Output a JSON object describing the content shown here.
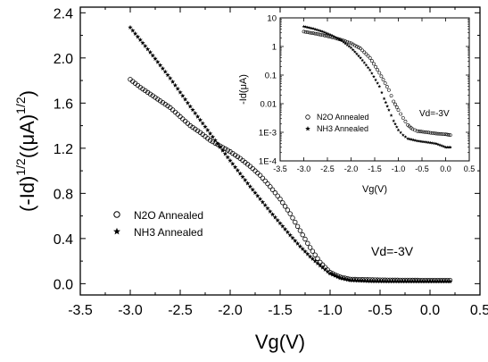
{
  "chart_data": [
    {
      "type": "scatter",
      "xlabel": "Vg(V)",
      "ylabel_main": "(-Id)",
      "ylabel_sup1": "1/2",
      "ylabel_mid": "((μA)",
      "ylabel_sup2": "1/2",
      "ylabel_end": ")",
      "xlim": [
        -3.5,
        0.5
      ],
      "ylim": [
        -0.1,
        2.45
      ],
      "xticks": [
        "-3.5",
        "-3.0",
        "-2.5",
        "-2.0",
        "-1.5",
        "-1.0",
        "-0.5",
        "0.0",
        "0.5"
      ],
      "yticks": [
        "0.0",
        "0.4",
        "0.8",
        "1.2",
        "1.6",
        "2.0",
        "2.4"
      ],
      "annotation": "Vd=-3V",
      "grid": false,
      "legend_position": "center-left",
      "series": [
        {
          "name": "N2O Annealed",
          "marker": "open-circle",
          "points": [
            [
              -3.0,
              1.81
            ],
            [
              -2.9,
              1.74
            ],
            [
              -2.8,
              1.68
            ],
            [
              -2.7,
              1.62
            ],
            [
              -2.6,
              1.56
            ],
            [
              -2.5,
              1.48
            ],
            [
              -2.4,
              1.4
            ],
            [
              -2.3,
              1.34
            ],
            [
              -2.2,
              1.27
            ],
            [
              -2.1,
              1.22
            ],
            [
              -2.0,
              1.17
            ],
            [
              -1.9,
              1.11
            ],
            [
              -1.8,
              1.04
            ],
            [
              -1.7,
              0.96
            ],
            [
              -1.6,
              0.86
            ],
            [
              -1.5,
              0.75
            ],
            [
              -1.4,
              0.62
            ],
            [
              -1.3,
              0.47
            ],
            [
              -1.2,
              0.32
            ],
            [
              -1.1,
              0.19
            ],
            [
              -1.0,
              0.1
            ],
            [
              -0.9,
              0.06
            ],
            [
              -0.8,
              0.04
            ],
            [
              -0.6,
              0.035
            ],
            [
              -0.4,
              0.032
            ],
            [
              -0.2,
              0.031
            ],
            [
              0.0,
              0.03
            ],
            [
              0.2,
              0.03
            ]
          ]
        },
        {
          "name": "NH3 Annealed",
          "marker": "star",
          "points": [
            [
              -3.0,
              2.27
            ],
            [
              -2.8,
              2.05
            ],
            [
              -2.6,
              1.82
            ],
            [
              -2.4,
              1.57
            ],
            [
              -2.2,
              1.33
            ],
            [
              -2.0,
              1.09
            ],
            [
              -1.8,
              0.86
            ],
            [
              -1.6,
              0.64
            ],
            [
              -1.4,
              0.43
            ],
            [
              -1.3,
              0.33
            ],
            [
              -1.2,
              0.24
            ],
            [
              -1.1,
              0.16
            ],
            [
              -1.0,
              0.09
            ],
            [
              -0.9,
              0.05
            ],
            [
              -0.8,
              0.03
            ],
            [
              -0.6,
              0.022
            ],
            [
              -0.4,
              0.02
            ],
            [
              -0.2,
              0.02
            ],
            [
              0.0,
              0.02
            ],
            [
              0.2,
              0.02
            ]
          ]
        }
      ]
    },
    {
      "type": "scatter",
      "xlabel": "Vg(V)",
      "ylabel": "-Id(μA)",
      "log_scale_y": true,
      "xlim": [
        -3.5,
        0.5
      ],
      "ylim": [
        0.0001,
        10
      ],
      "xticks": [
        "-3.5",
        "-3.0",
        "-2.5",
        "-2.0",
        "-1.5",
        "-1.0",
        "-0.5",
        "0.0",
        "0.5"
      ],
      "yticks": [
        "10",
        "1",
        "0.1",
        "0.01",
        "1E-3",
        "1E-4"
      ],
      "annotation": "Vd=-3V",
      "legend_position": "lower-left",
      "series": [
        {
          "name": "N2O Annealed",
          "marker": "open-circle",
          "points": [
            [
              -3.0,
              3.3
            ],
            [
              -2.8,
              2.9
            ],
            [
              -2.6,
              2.5
            ],
            [
              -2.4,
              2.1
            ],
            [
              -2.2,
              1.7
            ],
            [
              -2.0,
              1.3
            ],
            [
              -1.8,
              0.85
            ],
            [
              -1.6,
              0.4
            ],
            [
              -1.4,
              0.12
            ],
            [
              -1.2,
              0.03
            ],
            [
              -1.1,
              0.012
            ],
            [
              -1.0,
              0.006
            ],
            [
              -0.9,
              0.0032
            ],
            [
              -0.8,
              0.0018
            ],
            [
              -0.7,
              0.0013
            ],
            [
              -0.6,
              0.0011
            ],
            [
              -0.4,
              0.001
            ],
            [
              -0.2,
              0.0009
            ],
            [
              0.0,
              0.00085
            ],
            [
              0.1,
              0.0008
            ]
          ]
        },
        {
          "name": "NH3 Annealed",
          "marker": "star",
          "points": [
            [
              -3.0,
              5.0
            ],
            [
              -2.8,
              4.2
            ],
            [
              -2.6,
              3.3
            ],
            [
              -2.4,
              2.4
            ],
            [
              -2.2,
              1.6
            ],
            [
              -2.0,
              0.9
            ],
            [
              -1.8,
              0.4
            ],
            [
              -1.6,
              0.15
            ],
            [
              -1.4,
              0.04
            ],
            [
              -1.3,
              0.015
            ],
            [
              -1.2,
              0.006
            ],
            [
              -1.1,
              0.0025
            ],
            [
              -1.0,
              0.0012
            ],
            [
              -0.9,
              0.0008
            ],
            [
              -0.8,
              0.0006
            ],
            [
              -0.6,
              0.0005
            ],
            [
              -0.4,
              0.00045
            ],
            [
              -0.2,
              0.0004
            ],
            [
              0.0,
              0.0003
            ],
            [
              0.1,
              0.0003
            ]
          ]
        }
      ]
    }
  ]
}
